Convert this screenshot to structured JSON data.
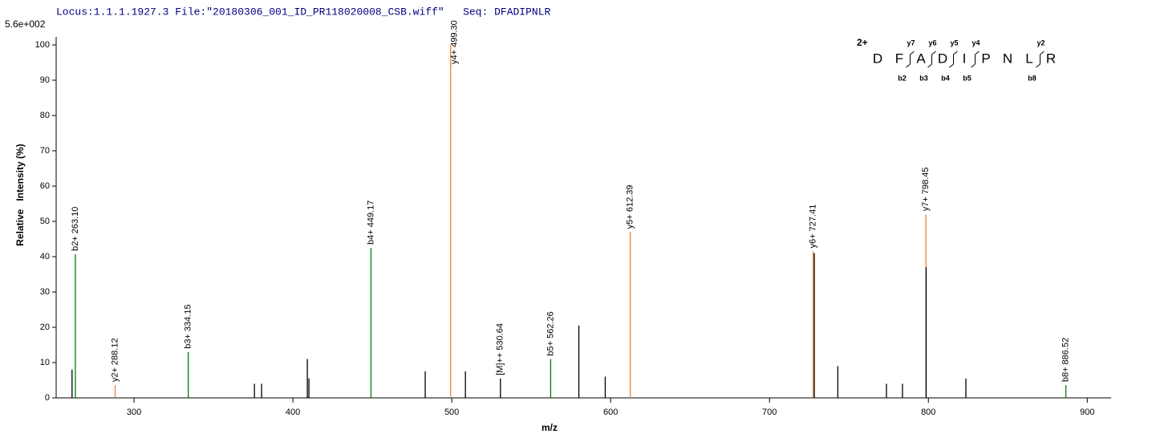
{
  "chart_data": {
    "type": "stick",
    "header": "Locus:1.1.1.1927.3 File:\"20180306_001_ID_PR118020008_CSB.wiff\"   Seq: DFADIPNLR",
    "max_intensity": "5.6e+002",
    "xlabel": "m/z",
    "ylabel": "Relative   Intensity (%)",
    "xlim": [
      251,
      915
    ],
    "ylim": [
      0,
      100
    ],
    "xticks": [
      300,
      400,
      500,
      600,
      700,
      800,
      900
    ],
    "yticks": [
      0,
      10,
      20,
      30,
      40,
      50,
      60,
      70,
      80,
      90,
      100
    ],
    "peaks": [
      {
        "mz": 261,
        "intensity": 8,
        "color": "#000000"
      },
      {
        "mz": 263.1,
        "intensity": 40.7,
        "color": "#008000",
        "label": "b2+ 263.10"
      },
      {
        "mz": 288.12,
        "intensity": 3.6,
        "color": "#e8853d",
        "label": "y2+ 288.12"
      },
      {
        "mz": 334.15,
        "intensity": 13,
        "color": "#008000",
        "label": "b3+ 334.15"
      },
      {
        "mz": 375.8,
        "intensity": 4,
        "color": "#000000"
      },
      {
        "mz": 380.3,
        "intensity": 4,
        "color": "#000000"
      },
      {
        "mz": 409.1,
        "intensity": 11,
        "color": "#000000"
      },
      {
        "mz": 410.1,
        "intensity": 5.5,
        "color": "#000000"
      },
      {
        "mz": 449.17,
        "intensity": 42.5,
        "color": "#008000",
        "label": "b4+ 449.17"
      },
      {
        "mz": 483.3,
        "intensity": 7.5,
        "color": "#000000"
      },
      {
        "mz": 499.3,
        "intensity": 100,
        "color": "#e8853d",
        "label": "y4+ 499.30"
      },
      {
        "mz": 508.6,
        "intensity": 7.5,
        "color": "#000000"
      },
      {
        "mz": 530.64,
        "intensity": 5.5,
        "color": "#000000",
        "label_color": "#808080",
        "label": "[M]++ 530.64"
      },
      {
        "mz": 562.26,
        "intensity": 11,
        "color": "#008000",
        "label": "b5+ 562.26"
      },
      {
        "mz": 580,
        "intensity": 20.5,
        "color": "#000000"
      },
      {
        "mz": 596.6,
        "intensity": 6,
        "color": "#000000"
      },
      {
        "mz": 612.39,
        "intensity": 47,
        "color": "#e8853d",
        "label": "y5+ 612.39"
      },
      {
        "mz": 727.41,
        "intensity": 41.5,
        "color": "#e8853d",
        "label": "y6+ 727.41"
      },
      {
        "mz": 728.2,
        "intensity": 41,
        "color": "#000000"
      },
      {
        "mz": 743,
        "intensity": 9,
        "color": "#000000"
      },
      {
        "mz": 773.6,
        "intensity": 4,
        "color": "#000000"
      },
      {
        "mz": 783.7,
        "intensity": 4,
        "color": "#000000"
      },
      {
        "mz": 798.45,
        "intensity": 52,
        "color": "#e8853d",
        "label": "y7+ 798.45"
      },
      {
        "mz": 798.6,
        "intensity": 37,
        "color": "#000000"
      },
      {
        "mz": 823.6,
        "intensity": 5.5,
        "color": "#000000"
      },
      {
        "mz": 886.52,
        "intensity": 3.6,
        "color": "#008000",
        "label": "b8+ 886.52"
      }
    ],
    "fragment_map": {
      "charge": "2+",
      "sequence": [
        "D",
        "F",
        "A",
        "D",
        "I",
        "P",
        "N",
        "L",
        "R"
      ],
      "y_ions": [
        null,
        "y7",
        "y6",
        "y5",
        "y4",
        null,
        null,
        "y2"
      ],
      "b_ions": [
        null,
        "b2",
        "b3",
        "b4",
        "b5",
        null,
        null,
        "b8"
      ]
    }
  }
}
